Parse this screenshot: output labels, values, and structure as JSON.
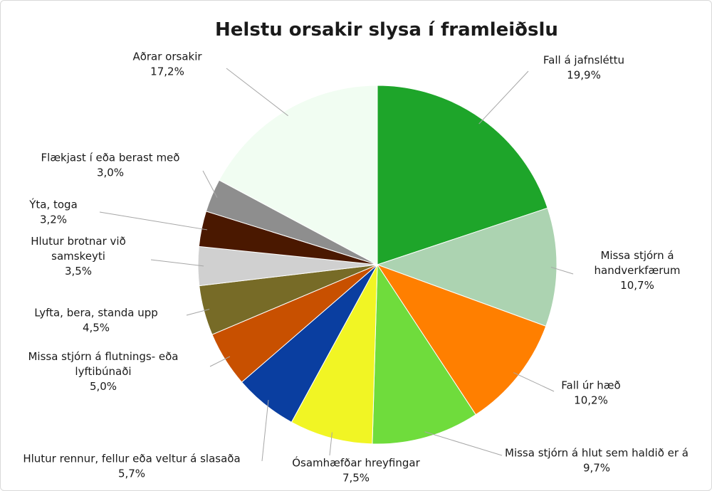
{
  "chart_data": {
    "type": "pie",
    "title": "Helstu orsakir slysa í framleiðslu",
    "slices": [
      {
        "label": [
          "Fall á jafnsléttu"
        ],
        "value_label": "19,9%",
        "value": 19.9,
        "color": "#1ea52a"
      },
      {
        "label": [
          "Missa stjórn á",
          "handverkfærum"
        ],
        "value_label": "10,7%",
        "value": 10.7,
        "color": "#acd3b1"
      },
      {
        "label": [
          "Fall úr hæð"
        ],
        "value_label": "10,2%",
        "value": 10.2,
        "color": "#ff7f00"
      },
      {
        "label": [
          "Missa stjórn á hlut sem haldið er á"
        ],
        "value_label": "9,7%",
        "value": 9.7,
        "color": "#6fdc3c"
      },
      {
        "label": [
          "Ósamhæfðar hreyfingar"
        ],
        "value_label": "7,5%",
        "value": 7.5,
        "color": "#f1f524"
      },
      {
        "label": [
          "Hlutur rennur, fellur eða veltur á slasaða"
        ],
        "value_label": "5,7%",
        "value": 5.7,
        "color": "#0a3ea0"
      },
      {
        "label": [
          "Missa stjórn á flutnings- eða",
          "lyftibúnaði"
        ],
        "value_label": "5,0%",
        "value": 5.0,
        "color": "#c85000"
      },
      {
        "label": [
          "Lyfta, bera, standa upp"
        ],
        "value_label": "4,5%",
        "value": 4.5,
        "color": "#776b27"
      },
      {
        "label": [
          "Hlutur brotnar við",
          "samskeyti"
        ],
        "value_label": "3,5%",
        "value": 3.5,
        "color": "#d0d0d0"
      },
      {
        "label": [
          "Ýta, toga"
        ],
        "value_label": "3,2%",
        "value": 3.2,
        "color": "#4a1800"
      },
      {
        "label": [
          "Flækjast í eða berast með"
        ],
        "value_label": "3,0%",
        "value": 3.0,
        "color": "#8e8e8e"
      },
      {
        "label": [
          "Aðrar orsakir"
        ],
        "value_label": "17,2%",
        "value": 17.2,
        "color": "#f1fdf2"
      }
    ]
  }
}
